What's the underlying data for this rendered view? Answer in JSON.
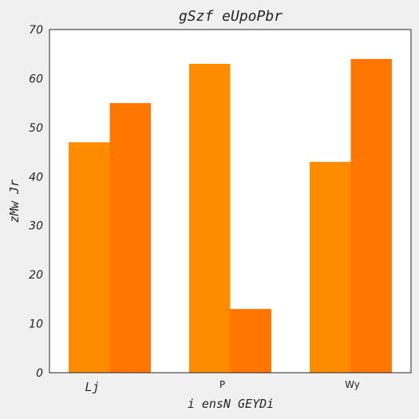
{
  "chart_data": {
    "type": "bar",
    "title": "gSzf eUpoPbr",
    "xlabel": "i ensN GEYDi",
    "ylabel": "zMw Jr",
    "categories": [
      "Lj",
      "P",
      "Wy"
    ],
    "series": [
      {
        "values": [
          47,
          63,
          43
        ],
        "color": "#ff8c00"
      },
      {
        "values": [
          55,
          13,
          64
        ],
        "color": "#ff7700"
      }
    ],
    "ylim": [
      0,
      70
    ],
    "yticks": [
      0,
      10,
      20,
      30,
      40,
      50,
      60,
      70
    ],
    "grid": false,
    "legend": "none",
    "background": "#ffffff"
  }
}
